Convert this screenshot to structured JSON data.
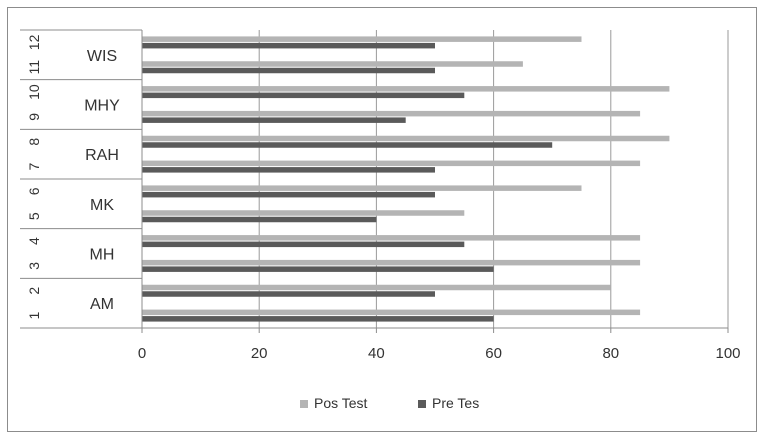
{
  "chart_data": {
    "type": "bar",
    "orientation": "horizontal",
    "y_tick_numbers": [
      "1",
      "2",
      "3",
      "4",
      "5",
      "6",
      "7",
      "8",
      "9",
      "10",
      "11",
      "12"
    ],
    "group_labels": [
      "AM",
      "MH",
      "MK",
      "RAH",
      "MHY",
      "WIS"
    ],
    "series": [
      {
        "name": "Pos Test",
        "color": "#b4b4b4",
        "values": [
          85,
          80,
          85,
          85,
          55,
          75,
          85,
          90,
          85,
          90,
          65,
          75
        ]
      },
      {
        "name": "Pre Tes",
        "color": "#5a5a5a",
        "values": [
          60,
          50,
          60,
          55,
          40,
          50,
          50,
          70,
          45,
          55,
          50,
          50
        ]
      }
    ],
    "xlim": [
      0,
      100
    ],
    "x_ticks": [
      0,
      20,
      40,
      60,
      80,
      100
    ],
    "grid": "vertical",
    "legend_position": "bottom",
    "title": "",
    "xlabel": "",
    "ylabel": ""
  }
}
